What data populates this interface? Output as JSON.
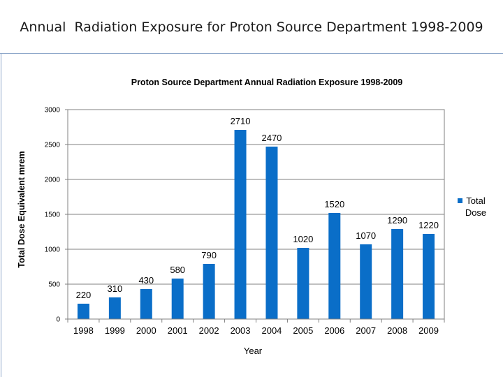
{
  "slide": {
    "title": "Annual  Radiation Exposure for Proton Source Department 1998-2009"
  },
  "colors": {
    "bar": "#0a6ec8",
    "axis": "#808080",
    "grid": "#808080",
    "text": "#000000",
    "divider": "#8aa4c8"
  },
  "chart_data": {
    "type": "bar",
    "title": "Proton Source Department Annual Radiation Exposure 1998-2009",
    "xlabel": "Year",
    "ylabel": "Total Dose Equivalent mrem",
    "categories": [
      "1998",
      "1999",
      "2000",
      "2001",
      "2002",
      "2003",
      "2004",
      "2005",
      "2006",
      "2007",
      "2008",
      "2009"
    ],
    "series": [
      {
        "name": "Total Dose",
        "values": [
          220,
          310,
          430,
          580,
          790,
          2710,
          2470,
          1020,
          1520,
          1070,
          1290,
          1220
        ]
      }
    ],
    "data_labels": [
      "220",
      "310",
      "430",
      "580",
      "790",
      "2710",
      "2470",
      "1020",
      "1520",
      "1070",
      "1290",
      "1220"
    ],
    "ylim": [
      0,
      3000
    ],
    "yticks": [
      0,
      500,
      1000,
      1500,
      2000,
      2500,
      3000
    ],
    "ytick_labels": [
      "0",
      "500",
      "1000",
      "1500",
      "2000",
      "2500",
      "3000"
    ],
    "grid": true,
    "legend": {
      "position": "right",
      "label": "Total\nDose"
    }
  }
}
